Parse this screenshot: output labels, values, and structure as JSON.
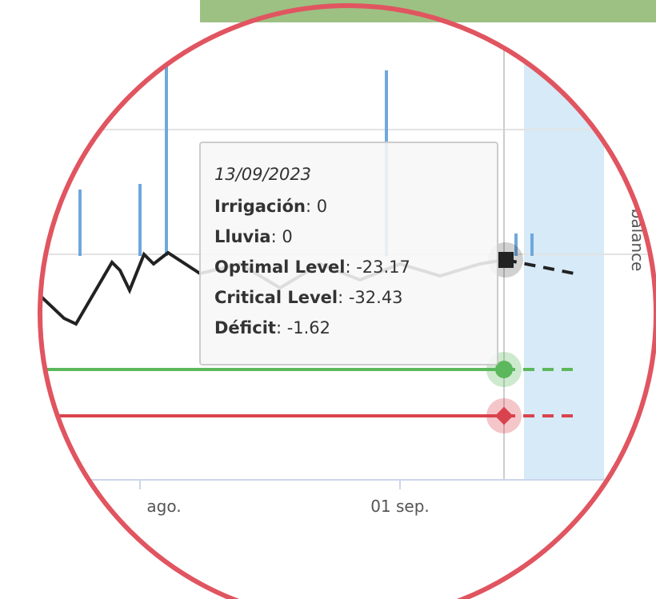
{
  "tooltip": {
    "date": "13/09/2023",
    "rows": [
      {
        "label": "Irrigación",
        "value": ": 0"
      },
      {
        "label": "Lluvia",
        "value": ": 0"
      },
      {
        "label": "Optimal Level",
        "value": ": -23.17"
      },
      {
        "label": "Critical Level",
        "value": ": -32.43"
      },
      {
        "label": "Déficit",
        "value": ": -1.62"
      }
    ]
  },
  "axis": {
    "x_labels": [
      "ago.",
      "01 sep."
    ],
    "y_label": "balance"
  }
}
